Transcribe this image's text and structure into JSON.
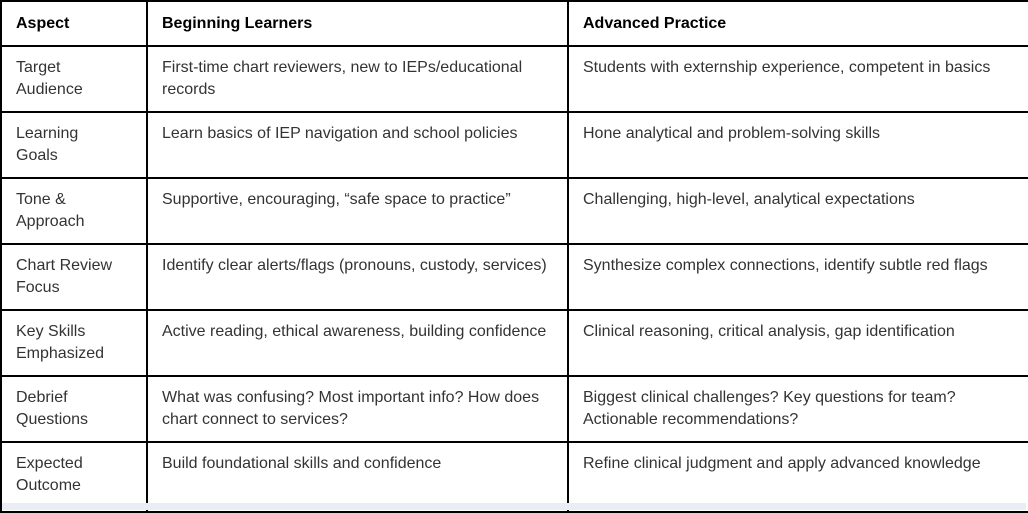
{
  "table": {
    "columns": [
      "Aspect",
      "Beginning Learners",
      "Advanced Practice"
    ],
    "rows": [
      {
        "aspect": "Target Audience",
        "beginning": "First-time chart reviewers, new to IEPs/educational records",
        "advanced": "Students with externship experience, competent in basics"
      },
      {
        "aspect": "Learning Goals",
        "beginning": "Learn basics of IEP navigation and school policies",
        "advanced": "Hone analytical and problem-solving skills"
      },
      {
        "aspect": "Tone & Approach",
        "beginning": "Supportive, encouraging, “safe space to practice”",
        "advanced": "Challenging, high-level, analytical expectations"
      },
      {
        "aspect": "Chart Review Focus",
        "beginning": "Identify clear alerts/flags (pronouns, custody, services)",
        "advanced": "Synthesize complex connections, identify subtle red flags"
      },
      {
        "aspect": "Key Skills Emphasized",
        "beginning": "Active reading, ethical awareness, building confidence",
        "advanced": "Clinical reasoning, critical analysis, gap identification"
      },
      {
        "aspect": "Debrief Questions",
        "beginning": "What was confusing? Most important info? How does chart connect to services?",
        "advanced": "Biggest clinical challenges? Key questions for team? Actionable recommendations?"
      },
      {
        "aspect": "Expected Outcome",
        "beginning": "Build foundational skills and confidence",
        "advanced": "Refine clinical judgment and apply advanced knowledge"
      }
    ]
  },
  "colors": {
    "border": "#000000",
    "header_text": "#000000",
    "body_text": "#333333",
    "background": "#ffffff",
    "bottom_strip": "#e9eef4"
  }
}
